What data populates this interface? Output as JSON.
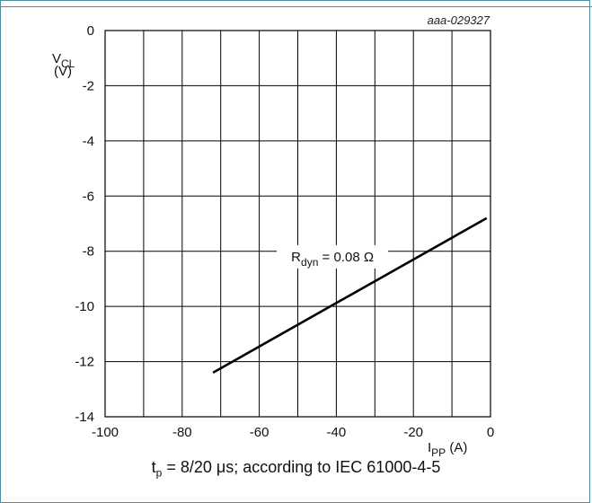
{
  "figure": {
    "reference": "aaa-029327",
    "caption_prefix": "t",
    "caption_sub": "p",
    "caption_rest": " = 8/20 μs; according to IEC 61000-4-5"
  },
  "colors": {
    "frame": "#4a90a4",
    "line": "#000000",
    "grid": "#000000"
  },
  "chart_data": {
    "type": "line",
    "title": "",
    "xlabel": {
      "main": "I",
      "sub": "PP",
      "unit": " (A)"
    },
    "ylabel": {
      "main": "V",
      "sub": "CL",
      "unit": "(V)"
    },
    "xlim": [
      -100,
      0
    ],
    "ylim": [
      -14,
      0
    ],
    "xticks": [
      -100,
      -80,
      -60,
      -40,
      -20,
      0
    ],
    "yticks": [
      0,
      -2,
      -4,
      -6,
      -8,
      -10,
      -12,
      -14
    ],
    "grid": true,
    "x_grid_step": 10,
    "y_grid_step": 2,
    "series": [
      {
        "x": [
          -72,
          -1
        ],
        "y": [
          -12.4,
          -6.8
        ]
      }
    ],
    "annotation": {
      "main": "R",
      "sub": "dyn",
      "rest": " = 0.08 Ω",
      "x": -41,
      "y": -8.2
    }
  }
}
